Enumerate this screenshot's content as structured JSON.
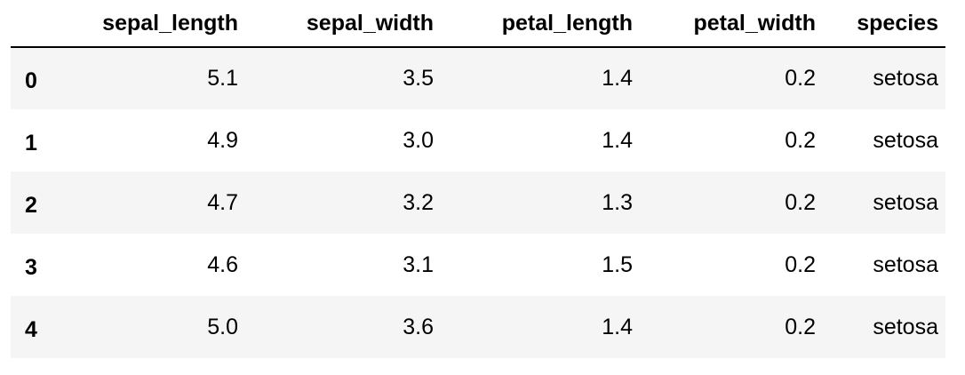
{
  "table": {
    "columns": [
      "sepal_length",
      "sepal_width",
      "petal_length",
      "petal_width",
      "species"
    ],
    "rows": [
      {
        "index": "0",
        "sepal_length": "5.1",
        "sepal_width": "3.5",
        "petal_length": "1.4",
        "petal_width": "0.2",
        "species": "setosa"
      },
      {
        "index": "1",
        "sepal_length": "4.9",
        "sepal_width": "3.0",
        "petal_length": "1.4",
        "petal_width": "0.2",
        "species": "setosa"
      },
      {
        "index": "2",
        "sepal_length": "4.7",
        "sepal_width": "3.2",
        "petal_length": "1.3",
        "petal_width": "0.2",
        "species": "setosa"
      },
      {
        "index": "3",
        "sepal_length": "4.6",
        "sepal_width": "3.1",
        "petal_length": "1.5",
        "petal_width": "0.2",
        "species": "setosa"
      },
      {
        "index": "4",
        "sepal_length": "5.0",
        "sepal_width": "3.6",
        "petal_length": "1.4",
        "petal_width": "0.2",
        "species": "setosa"
      }
    ]
  },
  "colors": {
    "text": "#000000",
    "stripe": "#f5f5f5",
    "background": "#ffffff",
    "header_rule": "#000000"
  }
}
